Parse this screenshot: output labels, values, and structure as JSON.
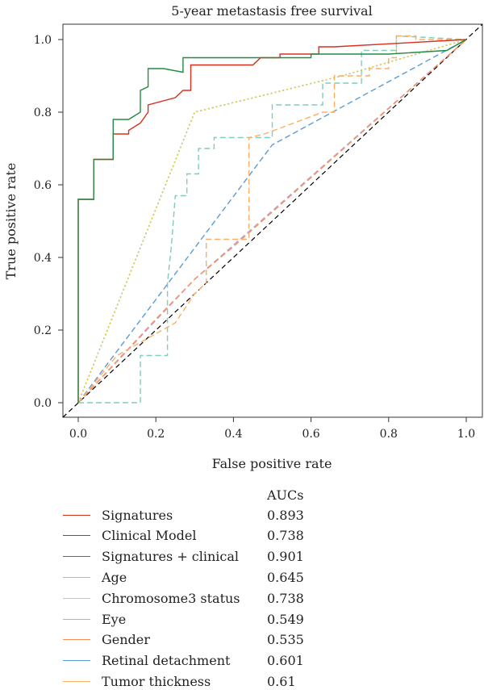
{
  "chart_data": {
    "type": "line",
    "title": "5-year metastasis free survival",
    "xlabel": "False positive rate",
    "ylabel": "True positive rate",
    "xlim": [
      0,
      1
    ],
    "ylim": [
      0,
      1
    ],
    "xticks": [
      "0.0",
      "0.2",
      "0.4",
      "0.6",
      "0.8",
      "1.0"
    ],
    "yticks": [
      "0.0",
      "0.2",
      "0.4",
      "0.6",
      "0.8",
      "1.0"
    ],
    "grid": false,
    "legend_header": "AUCs",
    "legend_position": "bottom",
    "series": [
      {
        "name": "Signatures",
        "auc": "0.893",
        "color": "#d7301f",
        "dash": "solid",
        "x": [
          0,
          0,
          0.04,
          0.04,
          0.09,
          0.09,
          0.13,
          0.13,
          0.16,
          0.18,
          0.18,
          0.25,
          0.27,
          0.29,
          0.29,
          0.45,
          0.47,
          0.52,
          0.52,
          0.62,
          0.62,
          0.66,
          0.66,
          1
        ],
        "y": [
          0,
          0.56,
          0.56,
          0.67,
          0.67,
          0.74,
          0.74,
          0.75,
          0.77,
          0.8,
          0.82,
          0.84,
          0.86,
          0.86,
          0.93,
          0.93,
          0.95,
          0.95,
          0.96,
          0.96,
          0.98,
          0.98,
          0.98,
          1
        ]
      },
      {
        "name": "Clinical Model",
        "auc": "0.738",
        "color": "#2166ac",
        "dash": "dotted",
        "x": [
          0,
          0.3,
          0.68,
          1
        ],
        "y": [
          0,
          0.8,
          0.9,
          1
        ]
      },
      {
        "name": "Signatures + clinical",
        "auc": "0.901",
        "color": "#238b45",
        "dash": "solid",
        "x": [
          0,
          0,
          0.04,
          0.04,
          0.09,
          0.09,
          0.13,
          0.16,
          0.16,
          0.18,
          0.18,
          0.2,
          0.22,
          0.27,
          0.27,
          0.6,
          0.6,
          0.8,
          0.95,
          1
        ],
        "y": [
          0,
          0.56,
          0.56,
          0.67,
          0.67,
          0.78,
          0.78,
          0.8,
          0.86,
          0.87,
          0.92,
          0.92,
          0.92,
          0.91,
          0.95,
          0.95,
          0.96,
          0.96,
          0.97,
          1
        ]
      },
      {
        "name": "Age",
        "auc": "0.645",
        "color": "#7fcdbb",
        "dash": "dashed",
        "x": [
          0,
          0.03,
          0.03,
          0.16,
          0.16,
          0.23,
          0.23,
          0.24,
          0.25,
          0.25,
          0.28,
          0.28,
          0.31,
          0.31,
          0.35,
          0.35,
          0.5,
          0.5,
          0.63,
          0.63,
          0.73,
          0.73,
          0.82,
          0.82,
          1
        ],
        "y": [
          0,
          0,
          0,
          0,
          0.13,
          0.13,
          0.33,
          0.43,
          0.57,
          0.57,
          0.57,
          0.63,
          0.63,
          0.7,
          0.7,
          0.73,
          0.73,
          0.82,
          0.82,
          0.88,
          0.88,
          0.97,
          0.97,
          1.01,
          1
        ]
      },
      {
        "name": "Chromosome3 status",
        "auc": "0.738",
        "color": "#e6d33a",
        "dash": "dotted",
        "x": [
          0,
          0.3,
          0.68,
          1
        ],
        "y": [
          0,
          0.8,
          0.9,
          1
        ]
      },
      {
        "name": "Eye",
        "auc": "0.549",
        "color": "#b8a9d9",
        "dash": "dashed",
        "x": [
          0,
          0.3,
          1
        ],
        "y": [
          0,
          0.34,
          1
        ]
      },
      {
        "name": "Gender",
        "auc": "0.535",
        "color": "#fc8d59",
        "dash": "dashed",
        "x": [
          0,
          0.2,
          0.3,
          0.4,
          1
        ],
        "y": [
          0,
          0.23,
          0.34,
          0.43,
          1
        ]
      },
      {
        "name": "Retinal detachment",
        "auc": "0.601",
        "color": "#5b9bd5",
        "dash": "dashed",
        "x": [
          0,
          0.5,
          1
        ],
        "y": [
          0,
          0.71,
          1
        ]
      },
      {
        "name": "Tumor thickness",
        "auc": "0.61",
        "color": "#fdae61",
        "dash": "dashed",
        "x": [
          0,
          0.1,
          0.2,
          0.25,
          0.3,
          0.33,
          0.33,
          0.44,
          0.44,
          0.48,
          0.63,
          0.66,
          0.66,
          0.75,
          0.75,
          0.8,
          0.8,
          0.82,
          0.82,
          0.87,
          0.87,
          1
        ],
        "y": [
          0,
          0.13,
          0.19,
          0.22,
          0.3,
          0.33,
          0.45,
          0.45,
          0.73,
          0.74,
          0.8,
          0.8,
          0.9,
          0.9,
          0.92,
          0.92,
          0.95,
          0.95,
          1.01,
          1.01,
          1.0,
          1
        ]
      }
    ]
  }
}
